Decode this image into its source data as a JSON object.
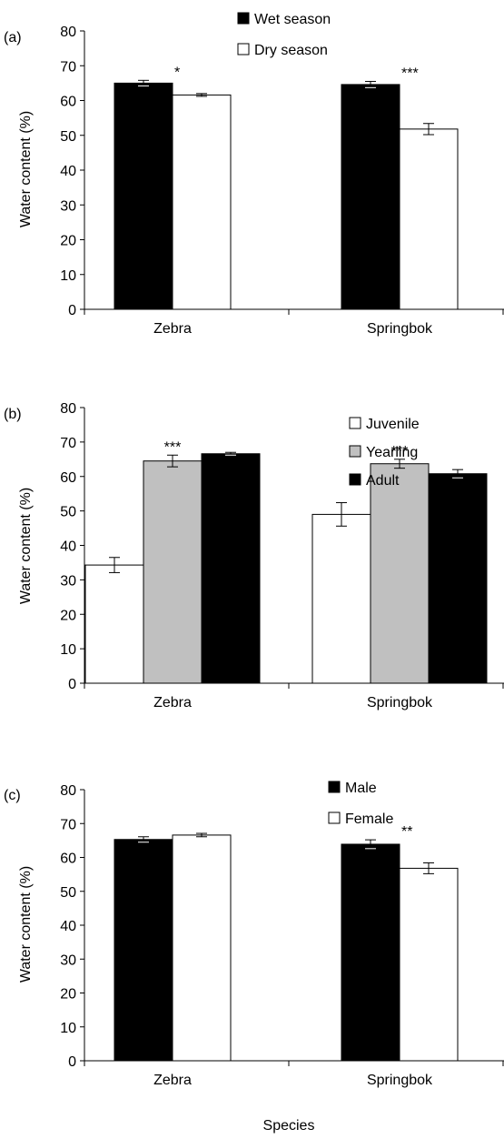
{
  "chart_data": [
    {
      "type": "bar",
      "panel_label": "(a)",
      "ylabel": "Water content (%)",
      "xlabel": "",
      "ylim": [
        0,
        80
      ],
      "yticks": [
        0,
        10,
        20,
        30,
        40,
        50,
        60,
        70,
        80
      ],
      "categories": [
        "Zebra",
        "Springbok"
      ],
      "legend_position": "top-center",
      "series": [
        {
          "name": "Wet season",
          "color": "#000000",
          "values": [
            65.0,
            64.6
          ],
          "errors": [
            0.8,
            0.9
          ]
        },
        {
          "name": "Dry season",
          "color": "#ffffff",
          "values": [
            61.6,
            51.8
          ],
          "errors": [
            0.4,
            1.6
          ]
        }
      ],
      "annotations": [
        {
          "text": "*",
          "category": 0,
          "series": 0
        },
        {
          "text": "***",
          "category": 1,
          "series": 0
        }
      ]
    },
    {
      "type": "bar",
      "panel_label": "(b)",
      "ylabel": "Water content (%)",
      "xlabel": "",
      "ylim": [
        0,
        80
      ],
      "yticks": [
        0,
        10,
        20,
        30,
        40,
        50,
        60,
        70,
        80
      ],
      "categories": [
        "Zebra",
        "Springbok"
      ],
      "legend_position": "top-center",
      "series": [
        {
          "name": "Juvenile",
          "color": "#ffffff",
          "values": [
            34.3,
            49.0
          ],
          "errors": [
            2.2,
            3.4
          ]
        },
        {
          "name": "Yearling",
          "color": "#c0c0c0",
          "values": [
            64.5,
            63.7
          ],
          "errors": [
            1.7,
            1.3
          ]
        },
        {
          "name": "Adult",
          "color": "#000000",
          "values": [
            66.6,
            60.8
          ],
          "errors": [
            0.4,
            1.2
          ]
        }
      ],
      "annotations": [
        {
          "text": "***",
          "category": 0,
          "series": 1
        },
        {
          "text": "***",
          "category": 1,
          "series": 1
        }
      ]
    },
    {
      "type": "bar",
      "panel_label": "(c)",
      "ylabel": "Water content (%)",
      "xlabel": "Species",
      "ylim": [
        0,
        80
      ],
      "yticks": [
        0,
        10,
        20,
        30,
        40,
        50,
        60,
        70,
        80
      ],
      "categories": [
        "Zebra",
        "Springbok"
      ],
      "legend_position": "top-center",
      "series": [
        {
          "name": "Male",
          "color": "#000000",
          "values": [
            65.3,
            63.9
          ],
          "errors": [
            0.8,
            1.3
          ]
        },
        {
          "name": "Female",
          "color": "#ffffff",
          "values": [
            66.6,
            56.8
          ],
          "errors": [
            0.5,
            1.6
          ]
        }
      ],
      "annotations": [
        {
          "text": "**",
          "category": 1,
          "series": 0
        }
      ]
    }
  ]
}
